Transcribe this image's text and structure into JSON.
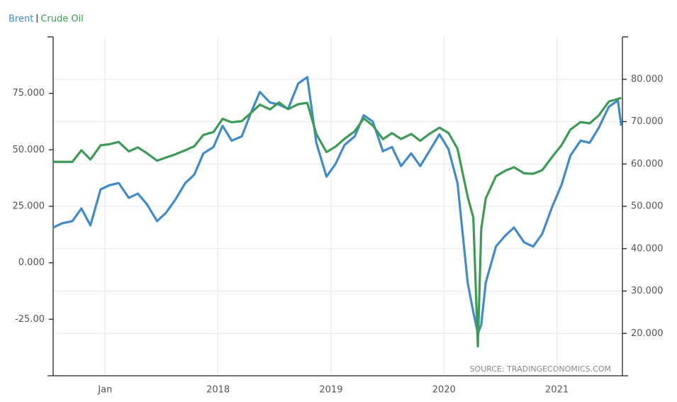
{
  "chart_data": {
    "type": "line",
    "source": "SOURCE: TRADINGECONOMICS.COM",
    "x": [
      2016.54,
      2016.62,
      2016.71,
      2016.79,
      2016.87,
      2016.96,
      2017.04,
      2017.12,
      2017.21,
      2017.29,
      2017.37,
      2017.46,
      2017.54,
      2017.62,
      2017.71,
      2017.79,
      2017.87,
      2017.96,
      2018.04,
      2018.12,
      2018.21,
      2018.29,
      2018.37,
      2018.46,
      2018.54,
      2018.62,
      2018.71,
      2018.79,
      2018.87,
      2018.96,
      2019.04,
      2019.12,
      2019.21,
      2019.29,
      2019.37,
      2019.46,
      2019.54,
      2019.62,
      2019.71,
      2019.79,
      2019.87,
      2019.96,
      2020.04,
      2020.12,
      2020.21,
      2020.26,
      2020.3,
      2020.33,
      2020.37,
      2020.46,
      2020.54,
      2020.62,
      2020.71,
      2020.79,
      2020.87,
      2020.96,
      2021.04,
      2021.12,
      2021.21,
      2021.29,
      2021.37,
      2021.46,
      2021.54,
      2021.57
    ],
    "series": [
      {
        "name": "Brent",
        "color": "#428bca",
        "axis": "y2",
        "values": [
          45,
          46,
          46.5,
          49.5,
          45.5,
          54,
          55,
          55.5,
          52,
          53,
          50.5,
          46.5,
          48.5,
          51.5,
          55.5,
          57.5,
          62.5,
          64,
          69,
          65.5,
          66.5,
          72,
          77,
          74.5,
          74,
          73,
          79,
          80.5,
          65,
          57,
          60,
          64.5,
          66.5,
          71.5,
          70,
          63,
          64,
          59.5,
          62.5,
          59.5,
          63,
          67,
          63.5,
          55.5,
          32,
          25,
          20,
          22,
          32,
          40.5,
          43,
          45,
          41.5,
          40.5,
          43.5,
          50,
          55,
          62,
          65.5,
          65,
          68.5,
          73.5,
          75,
          69
        ]
      },
      {
        "name": "Crude Oil",
        "color": "#3d9a57",
        "values": [
          44.7,
          44.7,
          44.7,
          49.8,
          45.7,
          52,
          52.5,
          53.5,
          49.3,
          51.1,
          48.5,
          45.2,
          46.6,
          48,
          49.8,
          51.6,
          56.6,
          57.9,
          63.7,
          62.2,
          62.7,
          66.3,
          70,
          67.9,
          71,
          68,
          70.2,
          70.8,
          57,
          49,
          51.4,
          54.9,
          58.2,
          63.9,
          60.8,
          54.7,
          57.4,
          54.8,
          57,
          54,
          57,
          59.8,
          57.5,
          50.5,
          29.2,
          20,
          -37,
          15,
          28.5,
          38.3,
          40.7,
          42.3,
          39.6,
          39.4,
          41,
          47,
          52,
          59,
          62.3,
          61.7,
          65.2,
          71.4,
          72.5,
          73
        ]
      }
    ],
    "xlim": [
      2016.54,
      2021.58
    ],
    "xticks": [
      {
        "value": 2017,
        "label": "Jan"
      },
      2018,
      2019,
      2020,
      2021
    ],
    "ylim": [
      -50,
      100
    ],
    "yticks": [
      {
        "value": -25,
        "label": "-25.00"
      },
      {
        "value": 0,
        "label": "0.000"
      },
      {
        "value": 25,
        "label": "25.000"
      },
      {
        "value": 50,
        "label": "50.000"
      },
      {
        "value": 75,
        "label": "75.000"
      }
    ],
    "y2lim": [
      10,
      90
    ],
    "y2ticks": [
      {
        "value": 20,
        "label": "20.000"
      },
      {
        "value": 30,
        "label": "30.000"
      },
      {
        "value": 40,
        "label": "40.000"
      },
      {
        "value": 50,
        "label": "50.000"
      },
      {
        "value": 60,
        "label": "60.000"
      },
      {
        "value": 70,
        "label": "70.000"
      },
      {
        "value": 80,
        "label": "80.000"
      }
    ],
    "grid": true
  }
}
